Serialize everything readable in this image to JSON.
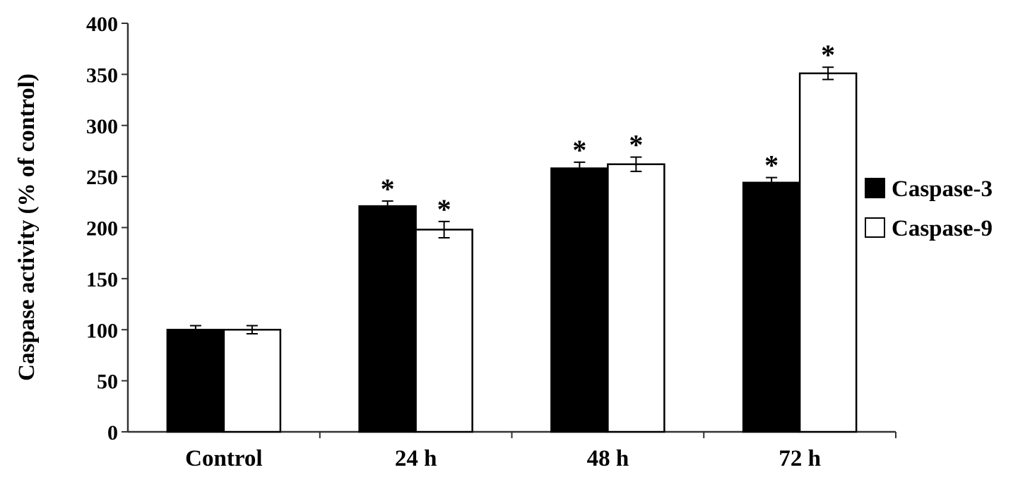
{
  "chart_data": {
    "type": "bar",
    "title": "",
    "xlabel": "",
    "ylabel": "Caspase activity (% of control)",
    "categories": [
      "Control",
      "24 h",
      "48 h",
      "72 h"
    ],
    "ylim": [
      0,
      400
    ],
    "yticks": [
      "0",
      "50",
      "100",
      "150",
      "200",
      "250",
      "300",
      "350",
      "400"
    ],
    "legend_position": "right",
    "series": [
      {
        "name": "Caspase-3",
        "color": "#000000",
        "values": [
          100,
          221,
          258,
          244
        ],
        "errors": [
          4,
          5,
          6,
          5
        ],
        "significance": [
          "",
          "*",
          "*",
          "*"
        ]
      },
      {
        "name": "Caspase-9",
        "color": "#ffffff",
        "values": [
          100,
          198,
          262,
          351
        ],
        "errors": [
          4,
          8,
          7,
          6
        ],
        "significance": [
          "",
          "*",
          "*",
          "*"
        ]
      }
    ]
  }
}
